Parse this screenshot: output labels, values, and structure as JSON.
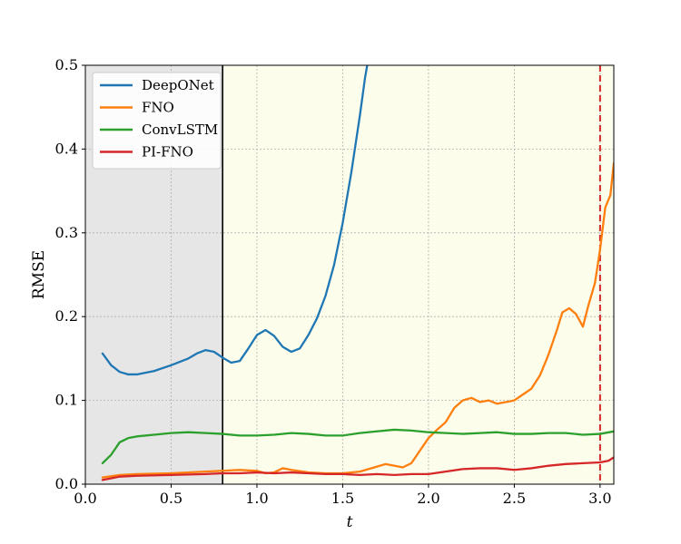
{
  "chart_data": {
    "type": "line",
    "xlabel": "t",
    "ylabel": "RMSE",
    "xlim": [
      0.0,
      3.08
    ],
    "ylim": [
      0.0,
      0.5
    ],
    "xticks": [
      "0.0",
      "0.5",
      "1.0",
      "1.5",
      "2.0",
      "2.5",
      "3.0"
    ],
    "yticks": [
      "0.0",
      "0.1",
      "0.2",
      "0.3",
      "0.4",
      "0.5"
    ],
    "grid": true,
    "legend_position": "top-left",
    "regions": [
      {
        "x0": 0.0,
        "x1": 0.8,
        "color": "#e6e6e6"
      },
      {
        "x0": 0.8,
        "x1": 3.08,
        "color": "#fdfdec"
      }
    ],
    "vlines": [
      {
        "x": 0.8,
        "color": "#000000",
        "style": "solid"
      },
      {
        "x": 3.0,
        "color": "#d62728",
        "style": "dashed"
      }
    ],
    "series": [
      {
        "name": "DeepONet",
        "color": "#1f77b4",
        "points": [
          [
            0.1,
            0.156
          ],
          [
            0.15,
            0.142
          ],
          [
            0.2,
            0.134
          ],
          [
            0.25,
            0.131
          ],
          [
            0.3,
            0.131
          ],
          [
            0.4,
            0.135
          ],
          [
            0.5,
            0.142
          ],
          [
            0.6,
            0.15
          ],
          [
            0.65,
            0.156
          ],
          [
            0.7,
            0.16
          ],
          [
            0.75,
            0.158
          ],
          [
            0.8,
            0.151
          ],
          [
            0.85,
            0.145
          ],
          [
            0.9,
            0.147
          ],
          [
            0.95,
            0.162
          ],
          [
            1.0,
            0.178
          ],
          [
            1.05,
            0.184
          ],
          [
            1.1,
            0.177
          ],
          [
            1.15,
            0.164
          ],
          [
            1.2,
            0.158
          ],
          [
            1.25,
            0.162
          ],
          [
            1.3,
            0.178
          ],
          [
            1.35,
            0.198
          ],
          [
            1.4,
            0.225
          ],
          [
            1.45,
            0.262
          ],
          [
            1.5,
            0.312
          ],
          [
            1.55,
            0.372
          ],
          [
            1.6,
            0.44
          ],
          [
            1.63,
            0.485
          ],
          [
            1.66,
            0.52
          ]
        ]
      },
      {
        "name": "FNO",
        "color": "#ff7f0e",
        "points": [
          [
            0.1,
            0.008
          ],
          [
            0.2,
            0.011
          ],
          [
            0.3,
            0.012
          ],
          [
            0.5,
            0.013
          ],
          [
            0.7,
            0.015
          ],
          [
            0.9,
            0.017
          ],
          [
            1.0,
            0.016
          ],
          [
            1.05,
            0.013
          ],
          [
            1.1,
            0.014
          ],
          [
            1.15,
            0.019
          ],
          [
            1.2,
            0.017
          ],
          [
            1.3,
            0.014
          ],
          [
            1.4,
            0.013
          ],
          [
            1.5,
            0.013
          ],
          [
            1.6,
            0.015
          ],
          [
            1.7,
            0.021
          ],
          [
            1.75,
            0.024
          ],
          [
            1.8,
            0.022
          ],
          [
            1.85,
            0.02
          ],
          [
            1.9,
            0.025
          ],
          [
            1.95,
            0.04
          ],
          [
            2.0,
            0.055
          ],
          [
            2.05,
            0.065
          ],
          [
            2.1,
            0.074
          ],
          [
            2.15,
            0.091
          ],
          [
            2.2,
            0.1
          ],
          [
            2.25,
            0.103
          ],
          [
            2.3,
            0.098
          ],
          [
            2.35,
            0.1
          ],
          [
            2.4,
            0.096
          ],
          [
            2.45,
            0.098
          ],
          [
            2.5,
            0.1
          ],
          [
            2.55,
            0.107
          ],
          [
            2.6,
            0.114
          ],
          [
            2.65,
            0.13
          ],
          [
            2.7,
            0.155
          ],
          [
            2.75,
            0.185
          ],
          [
            2.78,
            0.205
          ],
          [
            2.82,
            0.21
          ],
          [
            2.86,
            0.203
          ],
          [
            2.9,
            0.188
          ],
          [
            2.93,
            0.212
          ],
          [
            2.97,
            0.24
          ],
          [
            3.0,
            0.28
          ],
          [
            3.03,
            0.33
          ],
          [
            3.06,
            0.345
          ],
          [
            3.08,
            0.383
          ]
        ]
      },
      {
        "name": "ConvLSTM",
        "color": "#2ca02c",
        "points": [
          [
            0.1,
            0.025
          ],
          [
            0.15,
            0.035
          ],
          [
            0.2,
            0.05
          ],
          [
            0.25,
            0.055
          ],
          [
            0.3,
            0.057
          ],
          [
            0.4,
            0.059
          ],
          [
            0.5,
            0.061
          ],
          [
            0.6,
            0.062
          ],
          [
            0.7,
            0.061
          ],
          [
            0.8,
            0.06
          ],
          [
            0.9,
            0.058
          ],
          [
            1.0,
            0.058
          ],
          [
            1.1,
            0.059
          ],
          [
            1.2,
            0.061
          ],
          [
            1.3,
            0.06
          ],
          [
            1.4,
            0.058
          ],
          [
            1.5,
            0.058
          ],
          [
            1.6,
            0.061
          ],
          [
            1.7,
            0.063
          ],
          [
            1.8,
            0.065
          ],
          [
            1.9,
            0.064
          ],
          [
            2.0,
            0.062
          ],
          [
            2.1,
            0.061
          ],
          [
            2.2,
            0.06
          ],
          [
            2.3,
            0.061
          ],
          [
            2.4,
            0.062
          ],
          [
            2.5,
            0.06
          ],
          [
            2.6,
            0.06
          ],
          [
            2.7,
            0.061
          ],
          [
            2.8,
            0.061
          ],
          [
            2.9,
            0.059
          ],
          [
            3.0,
            0.06
          ],
          [
            3.08,
            0.063
          ]
        ]
      },
      {
        "name": "PI-FNO",
        "color": "#d62728",
        "points": [
          [
            0.1,
            0.005
          ],
          [
            0.2,
            0.009
          ],
          [
            0.3,
            0.01
          ],
          [
            0.5,
            0.011
          ],
          [
            0.7,
            0.012
          ],
          [
            0.8,
            0.013
          ],
          [
            0.9,
            0.013
          ],
          [
            1.0,
            0.014
          ],
          [
            1.1,
            0.013
          ],
          [
            1.2,
            0.014
          ],
          [
            1.3,
            0.013
          ],
          [
            1.4,
            0.012
          ],
          [
            1.5,
            0.012
          ],
          [
            1.6,
            0.011
          ],
          [
            1.7,
            0.012
          ],
          [
            1.8,
            0.011
          ],
          [
            1.9,
            0.012
          ],
          [
            2.0,
            0.012
          ],
          [
            2.1,
            0.015
          ],
          [
            2.2,
            0.018
          ],
          [
            2.3,
            0.019
          ],
          [
            2.4,
            0.019
          ],
          [
            2.5,
            0.017
          ],
          [
            2.6,
            0.019
          ],
          [
            2.7,
            0.022
          ],
          [
            2.8,
            0.024
          ],
          [
            2.9,
            0.025
          ],
          [
            3.0,
            0.026
          ],
          [
            3.05,
            0.028
          ],
          [
            3.08,
            0.032
          ]
        ]
      }
    ]
  }
}
